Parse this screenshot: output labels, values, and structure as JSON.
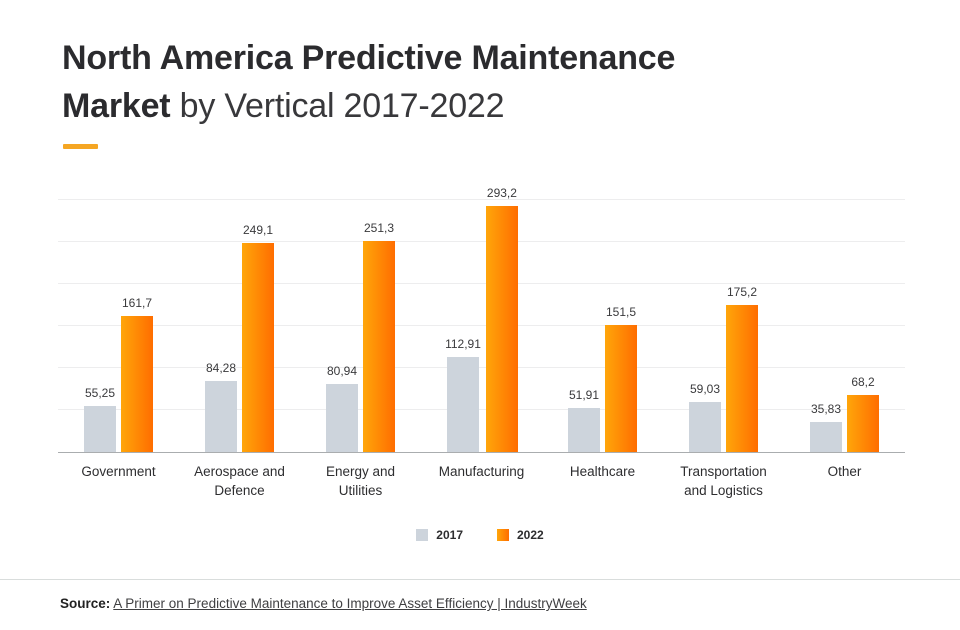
{
  "title": {
    "line1_bold": "North America Predictive Maintenance",
    "line2_bold": "Market",
    "line2_regular": " by Vertical 2017-2022"
  },
  "accent_color": "#F5A623",
  "chart_data": {
    "type": "bar",
    "title": "North America Predictive Maintenance Market by Vertical 2017-2022",
    "categories": [
      "Government",
      "Aerospace and Defence",
      "Energy and Utilities",
      "Manufacturing",
      "Healthcare",
      "Transportation and Logistics",
      "Other"
    ],
    "series": [
      {
        "name": "2017",
        "color": "#CDD4DC",
        "values": [
          55.25,
          84.28,
          80.94,
          112.91,
          51.91,
          59.03,
          35.83
        ],
        "labels": [
          "55,25",
          "84,28",
          "80,94",
          "112,91",
          "51,91",
          "59,03",
          "35,83"
        ]
      },
      {
        "name": "2022",
        "gradient": [
          "#FFA60A",
          "#FF6D00"
        ],
        "values": [
          161.7,
          249.1,
          251.3,
          293.2,
          151.5,
          175.2,
          68.2
        ],
        "labels": [
          "161,7",
          "249,1",
          "251,3",
          "293,2",
          "151,5",
          "175,2",
          "68,2"
        ]
      }
    ],
    "xlabel": "",
    "ylabel": "",
    "ylim": [
      0,
      300
    ],
    "gridline_step": 50,
    "grid": true,
    "legend_position": "bottom",
    "baseline_color": "#aaadaf",
    "gridline_color": "#ededee"
  },
  "footer": {
    "source_prefix": "Source:",
    "source_link": "A Primer on Predictive Maintenance to Improve Asset Efficiency | IndustryWeek"
  }
}
